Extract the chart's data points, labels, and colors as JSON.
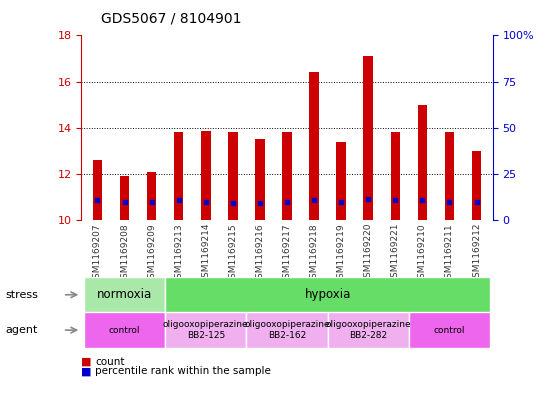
{
  "title": "GDS5067 / 8104901",
  "samples": [
    "GSM1169207",
    "GSM1169208",
    "GSM1169209",
    "GSM1169213",
    "GSM1169214",
    "GSM1169215",
    "GSM1169216",
    "GSM1169217",
    "GSM1169218",
    "GSM1169219",
    "GSM1169220",
    "GSM1169221",
    "GSM1169210",
    "GSM1169211",
    "GSM1169212"
  ],
  "count_values": [
    12.6,
    11.9,
    12.1,
    13.8,
    13.85,
    13.8,
    13.5,
    13.8,
    16.4,
    13.4,
    17.1,
    13.8,
    15.0,
    13.8,
    13.0
  ],
  "percentile_values": [
    10.85,
    10.8,
    10.8,
    10.85,
    10.8,
    10.75,
    10.75,
    10.8,
    10.85,
    10.8,
    10.9,
    10.85,
    10.85,
    10.8,
    10.8
  ],
  "bar_bottom": 10.0,
  "ylim_left": [
    10,
    18
  ],
  "ylim_right": [
    0,
    100
  ],
  "yticks_left": [
    10,
    12,
    14,
    16,
    18
  ],
  "yticks_right": [
    0,
    25,
    50,
    75,
    100
  ],
  "ytick_labels_right": [
    "0",
    "25",
    "50",
    "75",
    "100%"
  ],
  "bar_color": "#cc0000",
  "percentile_color": "#0000cc",
  "bar_width": 0.35,
  "stress_groups": [
    {
      "label": "normoxia",
      "start": 0,
      "end": 3,
      "color": "#aae8aa"
    },
    {
      "label": "hypoxia",
      "start": 3,
      "end": 15,
      "color": "#66dd66"
    }
  ],
  "agent_groups": [
    {
      "label": "control",
      "start": 0,
      "end": 3,
      "color": "#ee66ee"
    },
    {
      "label": "oligooxopiperazine\nBB2-125",
      "start": 3,
      "end": 6,
      "color": "#f0b0f0"
    },
    {
      "label": "oligooxopiperazine\nBB2-162",
      "start": 6,
      "end": 9,
      "color": "#f0b0f0"
    },
    {
      "label": "oligooxopiperazine\nBB2-282",
      "start": 9,
      "end": 12,
      "color": "#f0b0f0"
    },
    {
      "label": "control",
      "start": 12,
      "end": 15,
      "color": "#ee66ee"
    }
  ],
  "left_axis_color": "#cc0000",
  "right_axis_color": "#0000cc",
  "tick_label_color": "#333333",
  "plot_bg": "#ffffff",
  "grid_yticks": [
    12,
    14,
    16
  ]
}
